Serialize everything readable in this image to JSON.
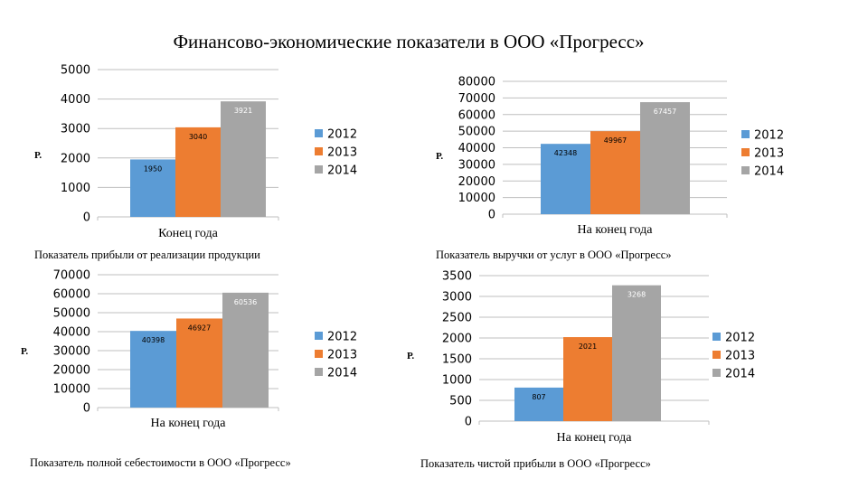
{
  "title": "Финансово-экономические показатели в ООО «Прогресс»",
  "colors": {
    "2012": "#5b9bd5",
    "2013": "#ed7d31",
    "2014": "#a5a5a5",
    "grid": "#bfbfbf"
  },
  "chart_data": [
    {
      "type": "bar",
      "caption": "Показатель прибыли от реализации продукции",
      "categories": [
        "Конец года"
      ],
      "ylabel": "Р.",
      "ylim": [
        0,
        5000
      ],
      "ystep": 1000,
      "series": [
        {
          "name": "2012",
          "values": [
            1950
          ]
        },
        {
          "name": "2013",
          "values": [
            3040
          ]
        },
        {
          "name": "2014",
          "values": [
            3921
          ]
        }
      ]
    },
    {
      "type": "bar",
      "caption": "Показатель выручки от услуг в ООО «Прогресс»",
      "categories": [
        "На конец года"
      ],
      "ylabel": "Р.",
      "ylim": [
        0,
        80000
      ],
      "ystep": 10000,
      "series": [
        {
          "name": "2012",
          "values": [
            42348
          ]
        },
        {
          "name": "2013",
          "values": [
            49967
          ]
        },
        {
          "name": "2014",
          "values": [
            67457
          ]
        }
      ]
    },
    {
      "type": "bar",
      "caption": "Показатель полной себестоимости в ООО «Прогресс»",
      "categories": [
        "На конец года"
      ],
      "ylabel": "Р.",
      "ylim": [
        0,
        70000
      ],
      "ystep": 10000,
      "series": [
        {
          "name": "2012",
          "values": [
            40398
          ]
        },
        {
          "name": "2013",
          "values": [
            46927
          ]
        },
        {
          "name": "2014",
          "values": [
            60536
          ]
        }
      ]
    },
    {
      "type": "bar",
      "caption": "Показатель чистой прибыли в ООО «Прогресс»",
      "categories": [
        "На конец года"
      ],
      "ylabel": "Р.",
      "ylim": [
        0,
        3500
      ],
      "ystep": 500,
      "series": [
        {
          "name": "2012",
          "values": [
            807
          ]
        },
        {
          "name": "2013",
          "values": [
            2021
          ]
        },
        {
          "name": "2014",
          "values": [
            3268
          ]
        }
      ]
    }
  ]
}
